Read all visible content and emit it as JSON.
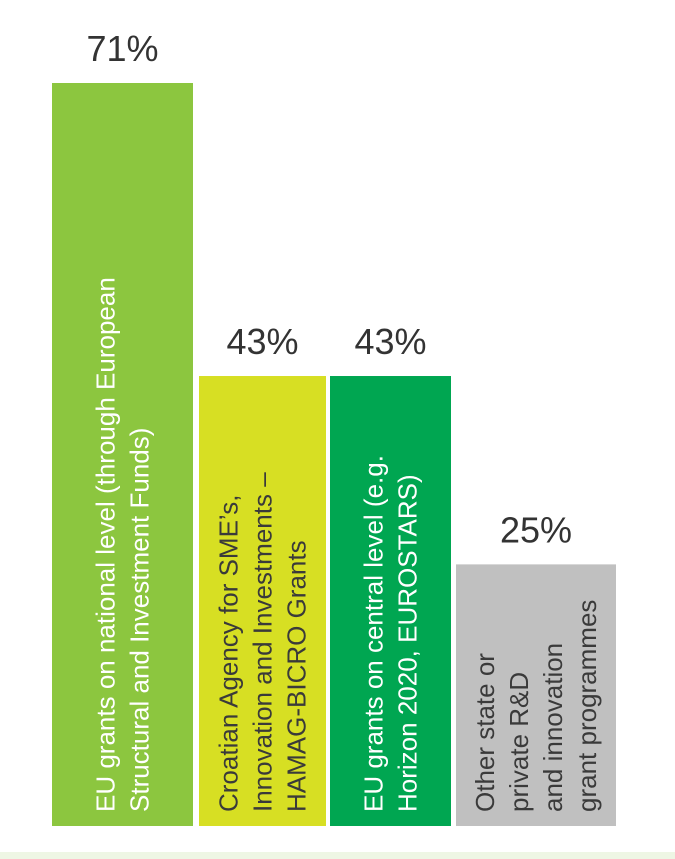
{
  "chart_data": {
    "type": "bar",
    "categories": [
      [
        "EU grants on national level (through European",
        "Structural and Investment Funds)"
      ],
      [
        "Croatian Agency for SME’s,",
        "Innovation and Investments –",
        "HAMAG-BICRO Grants"
      ],
      [
        "EU grants on central level (e.g.",
        "Horizon 2020, EUROSTARS)"
      ],
      [
        "Other state or",
        "private R&D",
        "and innovation",
        "grant programmes"
      ]
    ],
    "values": [
      71,
      43,
      43,
      25
    ],
    "value_labels": [
      "71%",
      "43%",
      "43%",
      "25%"
    ],
    "colors": [
      "#8cc63f",
      "#d7df23",
      "#00a651",
      "#c0c0c0"
    ],
    "label_colors": [
      "#ffffff",
      "#3a3a3a",
      "#ffffff",
      "#3a3a3a"
    ],
    "ylim": [
      0,
      100
    ],
    "grid": false,
    "legend": "none",
    "title": "",
    "xlabel": "",
    "ylabel": ""
  }
}
